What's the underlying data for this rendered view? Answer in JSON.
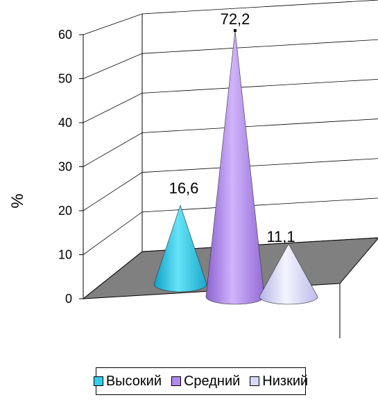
{
  "chart_data": {
    "type": "bar",
    "shape": "cone",
    "categories": [
      "Высокий",
      "Средний",
      "Низкий"
    ],
    "values": [
      16.6,
      72.2,
      11.1
    ],
    "data_labels": [
      "16,6",
      "72,2",
      "11,1"
    ],
    "ylabel": "%",
    "ylim": [
      0,
      60
    ],
    "yticks": [
      0,
      10,
      20,
      30,
      40,
      50,
      60
    ],
    "ytick_labels": [
      "0",
      "10",
      "20",
      "30",
      "40",
      "50",
      "60"
    ],
    "grid": true,
    "legend_position": "bottom",
    "colors": [
      "#33CCEE",
      "#B088EE",
      "#D8D8F6"
    ],
    "floor_color": "#808080"
  },
  "legend": [
    {
      "label": "Высокий",
      "color": "#33CCEE"
    },
    {
      "label": "Средний",
      "color": "#B088EE"
    },
    {
      "label": "Низкий",
      "color": "#D8D8F6"
    }
  ]
}
